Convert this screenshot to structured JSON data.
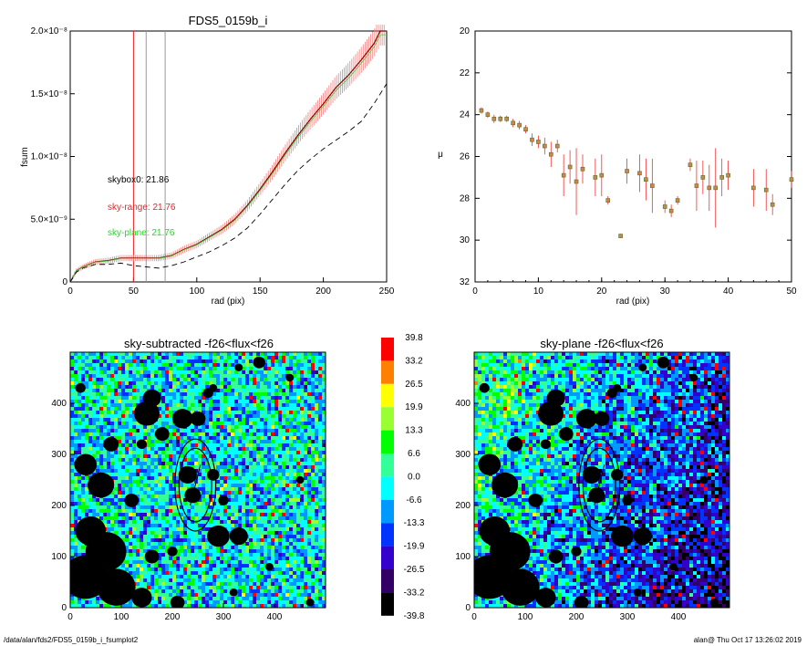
{
  "colors": {
    "accent_red": "#ee2222",
    "accent_green": "#22dd22",
    "mask": "#000000",
    "palette": [
      "#ff0000",
      "#ff8000",
      "#ffff00",
      "#99ff33",
      "#00ff00",
      "#33ff99",
      "#00ffff",
      "#0099ff",
      "#0033ff",
      "#3300cc",
      "#330066",
      "#000000"
    ]
  },
  "footer": {
    "left": "/data/alan/fds2/FDS5_0159b_i_fsumplot2",
    "right": "alan@  Thu Oct 17 13:26:02 2019"
  },
  "chart_data": [
    {
      "type": "line",
      "title": "FDS5_0159b_i",
      "xlabel": "rad (pix)",
      "ylabel": "fsum",
      "xlim": [
        0,
        250
      ],
      "ylim": [
        0,
        2e-08
      ],
      "xticks": [
        "0",
        "50",
        "100",
        "150",
        "200",
        "250"
      ],
      "yticks": [
        "0",
        "5.0×10⁻⁹",
        "1.0×10⁻⁸",
        "1.5×10⁻⁸",
        "2.0×10⁻⁸"
      ],
      "vlines": [
        {
          "x": 50,
          "color": "red"
        },
        {
          "x": 60,
          "color": "gray"
        },
        {
          "x": 75,
          "color": "gray"
        }
      ],
      "annotations": [
        {
          "text": "skybox0: 21.86",
          "color": "black"
        },
        {
          "text": "sky-range: 21.76",
          "color": "red"
        },
        {
          "text": "sky-plane: 21.76",
          "color": "green"
        }
      ],
      "series": [
        {
          "style": "solid-red-with-errorbars",
          "x": [
            0,
            5,
            10,
            20,
            30,
            40,
            50,
            60,
            70,
            80,
            90,
            100,
            110,
            120,
            130,
            140,
            150,
            160,
            170,
            180,
            190,
            200,
            210,
            220,
            230,
            240,
            245,
            250
          ],
          "y": [
            0,
            9e-10,
            1.2e-09,
            1.6e-09,
            1.7e-09,
            1.9e-09,
            1.9e-09,
            1.9e-09,
            1.9e-09,
            2.1e-09,
            2.6e-09,
            3e-09,
            3.6e-09,
            4.2e-09,
            5e-09,
            6.1e-09,
            7.4e-09,
            8.8e-09,
            1.03e-08,
            1.17e-08,
            1.3e-08,
            1.42e-08,
            1.55e-08,
            1.65e-08,
            1.77e-08,
            1.9e-08,
            2e-08,
            2e-08
          ]
        },
        {
          "style": "dashed-black",
          "x": [
            0,
            5,
            10,
            20,
            30,
            40,
            50,
            60,
            70,
            80,
            90,
            100,
            110,
            120,
            130,
            140,
            150,
            160,
            170,
            180,
            190,
            200,
            210,
            220,
            230,
            240,
            250
          ],
          "y": [
            0,
            8e-10,
            1.1e-09,
            1.4e-09,
            1.4e-09,
            1.5e-09,
            1.3e-09,
            1.2e-09,
            1.1e-09,
            1.3e-09,
            1.6e-09,
            2e-09,
            2.4e-09,
            2.9e-09,
            3.5e-09,
            4.3e-09,
            5.4e-09,
            6.6e-09,
            7.8e-09,
            8.9e-09,
            9.8e-09,
            1.06e-08,
            1.13e-08,
            1.2e-08,
            1.28e-08,
            1.42e-08,
            1.58e-08
          ]
        }
      ]
    },
    {
      "type": "scatter",
      "xlabel": "rad (pix)",
      "ylabel": "μ",
      "xlim": [
        0,
        50
      ],
      "ylim": [
        32,
        20
      ],
      "xticks": [
        "0",
        "10",
        "20",
        "30",
        "40",
        "50"
      ],
      "yticks": [
        "20",
        "22",
        "24",
        "26",
        "28",
        "30",
        "32"
      ],
      "points": [
        {
          "x": 1,
          "y": 23.8,
          "e": 0.15
        },
        {
          "x": 2,
          "y": 24.0,
          "e": 0.15
        },
        {
          "x": 3,
          "y": 24.2,
          "e": 0.2
        },
        {
          "x": 4,
          "y": 24.2,
          "e": 0.15
        },
        {
          "x": 5,
          "y": 24.2,
          "e": 0.15
        },
        {
          "x": 6,
          "y": 24.4,
          "e": 0.2
        },
        {
          "x": 7,
          "y": 24.5,
          "e": 0.2
        },
        {
          "x": 8,
          "y": 24.7,
          "e": 0.2
        },
        {
          "x": 9,
          "y": 25.2,
          "e": 0.3
        },
        {
          "x": 10,
          "y": 25.3,
          "e": 0.3
        },
        {
          "x": 11,
          "y": 25.5,
          "e": 0.4
        },
        {
          "x": 12,
          "y": 25.9,
          "e": 0.6
        },
        {
          "x": 13,
          "y": 25.5,
          "e": 0.3
        },
        {
          "x": 14,
          "y": 26.9,
          "e": 1.0
        },
        {
          "x": 15,
          "y": 26.5,
          "e": 0.8
        },
        {
          "x": 16,
          "y": 27.2,
          "e": 1.6
        },
        {
          "x": 17,
          "y": 26.6,
          "e": 0.7
        },
        {
          "x": 19,
          "y": 27.0,
          "e": 0.9
        },
        {
          "x": 20,
          "y": 26.9,
          "e": 1.0
        },
        {
          "x": 21,
          "y": 28.1,
          "e": 0.2
        },
        {
          "x": 23,
          "y": 29.8,
          "e": 0.1
        },
        {
          "x": 24,
          "y": 26.7,
          "e": 0.6
        },
        {
          "x": 26,
          "y": 26.8,
          "e": 0.9
        },
        {
          "x": 27,
          "y": 27.1,
          "e": 1.0
        },
        {
          "x": 28,
          "y": 27.4,
          "e": 1.3
        },
        {
          "x": 30,
          "y": 28.4,
          "e": 0.3
        },
        {
          "x": 31,
          "y": 28.6,
          "e": 0.3
        },
        {
          "x": 32,
          "y": 28.1,
          "e": 0.2
        },
        {
          "x": 34,
          "y": 26.4,
          "e": 0.3
        },
        {
          "x": 35,
          "y": 27.4,
          "e": 1.2
        },
        {
          "x": 36,
          "y": 27.0,
          "e": 0.8
        },
        {
          "x": 37,
          "y": 27.5,
          "e": 1.1
        },
        {
          "x": 38,
          "y": 27.5,
          "e": 1.9
        },
        {
          "x": 39,
          "y": 27.0,
          "e": 0.9
        },
        {
          "x": 40,
          "y": 26.9,
          "e": 0.7
        },
        {
          "x": 44,
          "y": 27.5,
          "e": 0.9
        },
        {
          "x": 46,
          "y": 27.6,
          "e": 1.0
        },
        {
          "x": 47,
          "y": 28.3,
          "e": 0.5
        },
        {
          "x": 50,
          "y": 27.1,
          "e": 0.4
        }
      ]
    },
    {
      "type": "heatmap",
      "title": "sky-subtracted -f26<flux<f26",
      "xlim": [
        0,
        500
      ],
      "ylim": [
        0,
        500
      ],
      "xticks": [
        "0",
        "100",
        "200",
        "300",
        "400"
      ],
      "yticks": [
        "0",
        "100",
        "200",
        "300",
        "400"
      ],
      "gradient": "uniform",
      "ellipse_center": [
        245,
        240
      ],
      "blobs": [
        [
          150,
          380,
          25
        ],
        [
          160,
          410,
          18
        ],
        [
          220,
          370,
          20
        ],
        [
          250,
          370,
          15
        ],
        [
          270,
          420,
          10
        ],
        [
          280,
          430,
          8
        ],
        [
          370,
          480,
          12
        ],
        [
          330,
          470,
          8
        ],
        [
          180,
          340,
          14
        ],
        [
          140,
          320,
          10
        ],
        [
          230,
          260,
          18
        ],
        [
          240,
          220,
          16
        ],
        [
          280,
          260,
          12
        ],
        [
          300,
          210,
          10
        ],
        [
          120,
          210,
          14
        ],
        [
          30,
          280,
          22
        ],
        [
          60,
          240,
          26
        ],
        [
          80,
          320,
          15
        ],
        [
          290,
          140,
          22
        ],
        [
          330,
          140,
          18
        ],
        [
          200,
          110,
          10
        ],
        [
          160,
          100,
          14
        ],
        [
          40,
          150,
          30
        ],
        [
          70,
          110,
          40
        ],
        [
          30,
          60,
          45
        ],
        [
          90,
          40,
          38
        ],
        [
          140,
          20,
          20
        ],
        [
          210,
          10,
          14
        ],
        [
          390,
          80,
          8
        ],
        [
          320,
          30,
          8
        ],
        [
          20,
          430,
          10
        ],
        [
          430,
          450,
          8
        ],
        [
          470,
          10,
          8
        ],
        [
          450,
          250,
          8
        ]
      ]
    },
    {
      "type": "heatmap",
      "title": "sky-plane -f26<flux<f26",
      "xlim": [
        0,
        500
      ],
      "ylim": [
        0,
        500
      ],
      "xticks": [
        "0",
        "100",
        "200",
        "300",
        "400"
      ],
      "yticks": [
        "0",
        "100",
        "200",
        "300",
        "400"
      ],
      "gradient": "plane",
      "ellipse_center": [
        245,
        240
      ]
    },
    {
      "type": "colorbar",
      "labels": [
        "39.8",
        "33.2",
        "26.5",
        "19.9",
        "13.3",
        "6.6",
        "0.0",
        "-6.6",
        "-13.3",
        "-19.9",
        "-26.5",
        "-33.2",
        "-39.8"
      ]
    }
  ]
}
